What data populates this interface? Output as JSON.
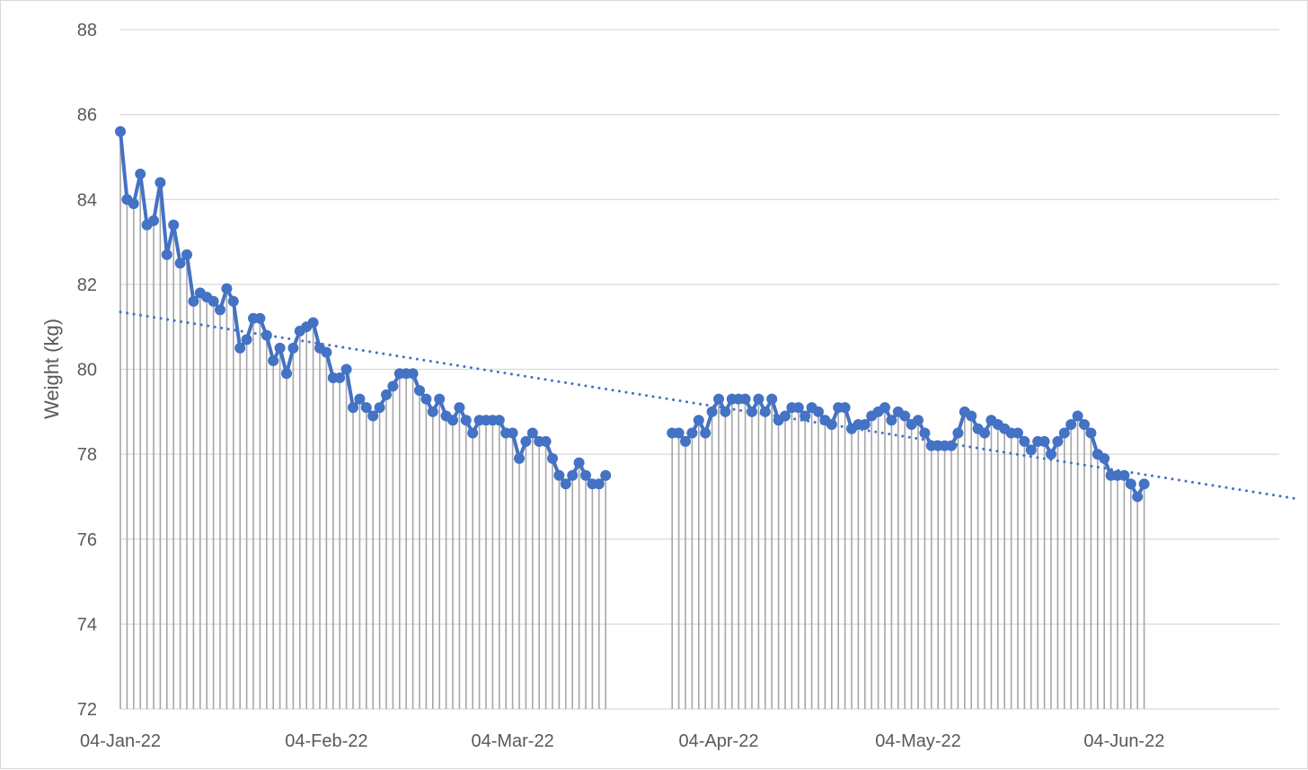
{
  "chart_data": {
    "type": "line",
    "title": "",
    "xlabel": "",
    "ylabel": "Weight (kg)",
    "ylim": [
      72,
      88
    ],
    "yticks": [
      72,
      74,
      76,
      78,
      80,
      82,
      84,
      86,
      88
    ],
    "xlim": [
      "2022-01-04",
      "2022-06-30"
    ],
    "xticks": [
      {
        "date": "2022-01-04",
        "label": "04-Jan-22"
      },
      {
        "date": "2022-02-04",
        "label": "04-Feb-22"
      },
      {
        "date": "2022-03-04",
        "label": "04-Mar-22"
      },
      {
        "date": "2022-04-04",
        "label": "04-Apr-22"
      },
      {
        "date": "2022-05-04",
        "label": "04-May-22"
      },
      {
        "date": "2022-06-04",
        "label": "04-Jun-22"
      }
    ],
    "grid": "horizontal",
    "drop_lines": true,
    "colors": {
      "series": "#4472c4",
      "dropline": "#a6a6a6",
      "grid": "#d9d9d9",
      "text": "#595959"
    },
    "series": [
      {
        "points": [
          [
            "2022-01-04",
            85.6
          ],
          [
            "2022-01-05",
            84.0
          ],
          [
            "2022-01-06",
            83.9
          ],
          [
            "2022-01-07",
            84.6
          ],
          [
            "2022-01-08",
            83.4
          ],
          [
            "2022-01-09",
            83.5
          ],
          [
            "2022-01-10",
            84.4
          ],
          [
            "2022-01-11",
            82.7
          ],
          [
            "2022-01-12",
            83.4
          ],
          [
            "2022-01-13",
            82.5
          ],
          [
            "2022-01-14",
            82.7
          ],
          [
            "2022-01-15",
            81.6
          ],
          [
            "2022-01-16",
            81.8
          ],
          [
            "2022-01-17",
            81.7
          ],
          [
            "2022-01-18",
            81.6
          ],
          [
            "2022-01-19",
            81.4
          ],
          [
            "2022-01-20",
            81.9
          ],
          [
            "2022-01-21",
            81.6
          ],
          [
            "2022-01-22",
            80.5
          ],
          [
            "2022-01-23",
            80.7
          ],
          [
            "2022-01-24",
            81.2
          ],
          [
            "2022-01-25",
            81.2
          ],
          [
            "2022-01-26",
            80.8
          ],
          [
            "2022-01-27",
            80.2
          ],
          [
            "2022-01-28",
            80.5
          ],
          [
            "2022-01-29",
            79.9
          ],
          [
            "2022-01-30",
            80.5
          ],
          [
            "2022-01-31",
            80.9
          ],
          [
            "2022-02-01",
            81.0
          ],
          [
            "2022-02-02",
            81.1
          ],
          [
            "2022-02-03",
            80.5
          ],
          [
            "2022-02-04",
            80.4
          ],
          [
            "2022-02-05",
            79.8
          ],
          [
            "2022-02-06",
            79.8
          ],
          [
            "2022-02-07",
            80.0
          ],
          [
            "2022-02-08",
            79.1
          ],
          [
            "2022-02-09",
            79.3
          ],
          [
            "2022-02-10",
            79.1
          ],
          [
            "2022-02-11",
            78.9
          ],
          [
            "2022-02-12",
            79.1
          ],
          [
            "2022-02-13",
            79.4
          ],
          [
            "2022-02-14",
            79.6
          ],
          [
            "2022-02-15",
            79.9
          ],
          [
            "2022-02-16",
            79.9
          ],
          [
            "2022-02-17",
            79.9
          ],
          [
            "2022-02-18",
            79.5
          ],
          [
            "2022-02-19",
            79.3
          ],
          [
            "2022-02-20",
            79.0
          ],
          [
            "2022-02-21",
            79.3
          ],
          [
            "2022-02-22",
            78.9
          ],
          [
            "2022-02-23",
            78.8
          ],
          [
            "2022-02-24",
            79.1
          ],
          [
            "2022-02-25",
            78.8
          ],
          [
            "2022-02-26",
            78.5
          ],
          [
            "2022-02-27",
            78.8
          ],
          [
            "2022-02-28",
            78.8
          ],
          [
            "2022-03-01",
            78.8
          ],
          [
            "2022-03-02",
            78.8
          ],
          [
            "2022-03-03",
            78.5
          ],
          [
            "2022-03-04",
            78.5
          ],
          [
            "2022-03-05",
            77.9
          ],
          [
            "2022-03-06",
            78.3
          ],
          [
            "2022-03-07",
            78.5
          ],
          [
            "2022-03-08",
            78.3
          ],
          [
            "2022-03-09",
            78.3
          ],
          [
            "2022-03-10",
            77.9
          ],
          [
            "2022-03-11",
            77.5
          ],
          [
            "2022-03-12",
            77.3
          ],
          [
            "2022-03-13",
            77.5
          ],
          [
            "2022-03-14",
            77.8
          ],
          [
            "2022-03-15",
            77.5
          ],
          [
            "2022-03-16",
            77.3
          ],
          [
            "2022-03-17",
            77.3
          ],
          [
            "2022-03-18",
            77.5
          ],
          [
            "2022-03-28",
            78.5
          ],
          [
            "2022-03-29",
            78.5
          ],
          [
            "2022-03-30",
            78.3
          ],
          [
            "2022-03-31",
            78.5
          ],
          [
            "2022-04-01",
            78.8
          ],
          [
            "2022-04-02",
            78.5
          ],
          [
            "2022-04-03",
            79.0
          ],
          [
            "2022-04-04",
            79.3
          ],
          [
            "2022-04-05",
            79.0
          ],
          [
            "2022-04-06",
            79.3
          ],
          [
            "2022-04-07",
            79.3
          ],
          [
            "2022-04-08",
            79.3
          ],
          [
            "2022-04-09",
            79.0
          ],
          [
            "2022-04-10",
            79.3
          ],
          [
            "2022-04-11",
            79.0
          ],
          [
            "2022-04-12",
            79.3
          ],
          [
            "2022-04-13",
            78.8
          ],
          [
            "2022-04-14",
            78.9
          ],
          [
            "2022-04-15",
            79.1
          ],
          [
            "2022-04-16",
            79.1
          ],
          [
            "2022-04-17",
            78.9
          ],
          [
            "2022-04-18",
            79.1
          ],
          [
            "2022-04-19",
            79.0
          ],
          [
            "2022-04-20",
            78.8
          ],
          [
            "2022-04-21",
            78.7
          ],
          [
            "2022-04-22",
            79.1
          ],
          [
            "2022-04-23",
            79.1
          ],
          [
            "2022-04-24",
            78.6
          ],
          [
            "2022-04-25",
            78.7
          ],
          [
            "2022-04-26",
            78.7
          ],
          [
            "2022-04-27",
            78.9
          ],
          [
            "2022-04-28",
            79.0
          ],
          [
            "2022-04-29",
            79.1
          ],
          [
            "2022-04-30",
            78.8
          ],
          [
            "2022-05-01",
            79.0
          ],
          [
            "2022-05-02",
            78.9
          ],
          [
            "2022-05-03",
            78.7
          ],
          [
            "2022-05-04",
            78.8
          ],
          [
            "2022-05-05",
            78.5
          ],
          [
            "2022-05-06",
            78.2
          ],
          [
            "2022-05-07",
            78.2
          ],
          [
            "2022-05-08",
            78.2
          ],
          [
            "2022-05-09",
            78.2
          ],
          [
            "2022-05-10",
            78.5
          ],
          [
            "2022-05-11",
            79.0
          ],
          [
            "2022-05-12",
            78.9
          ],
          [
            "2022-05-13",
            78.6
          ],
          [
            "2022-05-14",
            78.5
          ],
          [
            "2022-05-15",
            78.8
          ],
          [
            "2022-05-16",
            78.7
          ],
          [
            "2022-05-17",
            78.6
          ],
          [
            "2022-05-18",
            78.5
          ],
          [
            "2022-05-19",
            78.5
          ],
          [
            "2022-05-20",
            78.3
          ],
          [
            "2022-05-21",
            78.1
          ],
          [
            "2022-05-22",
            78.3
          ],
          [
            "2022-05-23",
            78.3
          ],
          [
            "2022-05-24",
            78.0
          ],
          [
            "2022-05-25",
            78.3
          ],
          [
            "2022-05-26",
            78.5
          ],
          [
            "2022-05-27",
            78.7
          ],
          [
            "2022-05-28",
            78.9
          ],
          [
            "2022-05-29",
            78.7
          ],
          [
            "2022-05-30",
            78.5
          ],
          [
            "2022-05-31",
            78.0
          ],
          [
            "2022-06-01",
            77.9
          ],
          [
            "2022-06-02",
            77.5
          ],
          [
            "2022-06-03",
            77.5
          ],
          [
            "2022-06-04",
            77.5
          ],
          [
            "2022-06-05",
            77.3
          ],
          [
            "2022-06-06",
            77.0
          ],
          [
            "2022-06-07",
            77.3
          ]
        ]
      }
    ],
    "trendline": {
      "type": "linear",
      "style": "dotted",
      "start": [
        "2022-01-04",
        81.35
      ],
      "end": [
        "2022-06-30",
        76.95
      ]
    }
  }
}
